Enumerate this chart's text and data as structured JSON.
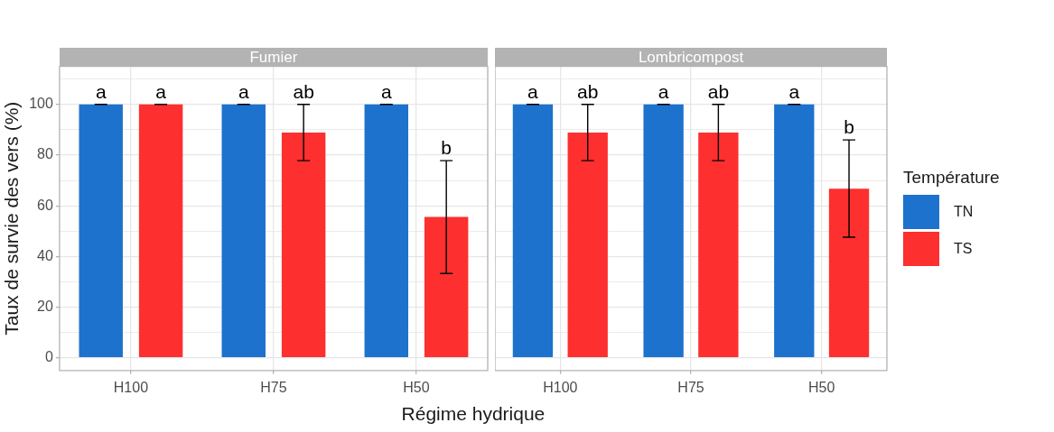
{
  "chart_data": [
    {
      "type": "bar",
      "title": "Fumier",
      "xlabel": "Régime hydrique",
      "ylabel": "Taux de survie des vers (%)",
      "categories": [
        "H100",
        "H75",
        "H50"
      ],
      "series": [
        {
          "color": "#1c72cc",
          "values": [
            100,
            100,
            100
          ],
          "errors": [
            0,
            0,
            0
          ],
          "value_labels": [
            "a",
            "a",
            "a"
          ]
        },
        {
          "color": "#fe2f2f",
          "values": [
            100,
            88.9,
            55.6
          ],
          "errors": [
            0,
            [
              77.8,
              100
            ],
            [
              33.3,
              77.8
            ]
          ],
          "value_labels": [
            "a",
            "ab",
            "b"
          ]
        }
      ],
      "ylim": [
        -5,
        115
      ],
      "yticks": [
        0,
        {
          "value": 10,
          "label": null
        },
        20,
        {
          "value": 30,
          "label": null
        },
        40,
        {
          "value": 50,
          "label": null
        },
        60,
        {
          "value": 70,
          "label": null
        },
        80,
        {
          "value": 90,
          "label": null
        },
        100,
        {
          "value": 110,
          "label": null
        }
      ],
      "grid": true,
      "legend": false
    },
    {
      "type": "bar",
      "title": "Lombricompost",
      "legend_title": "Température",
      "categories": [
        "H100",
        "H75",
        "H50"
      ],
      "series": [
        {
          "name": "TN",
          "color": "#1c72cc",
          "values": [
            100,
            100,
            100
          ],
          "errors": [
            0,
            0,
            0
          ],
          "value_labels": [
            "a",
            "a",
            "a"
          ]
        },
        {
          "name": "TS",
          "color": "#fe2f2f",
          "values": [
            88.9,
            88.9,
            66.7
          ],
          "errors": [
            [
              77.8,
              100
            ],
            [
              77.8,
              100
            ],
            [
              47.6,
              86
            ]
          ],
          "value_labels": [
            "ab",
            "ab",
            "b"
          ]
        }
      ],
      "ylim": [
        -5,
        115
      ],
      "yticks": [
        0,
        {
          "value": 10,
          "label": null
        },
        20,
        {
          "value": 30,
          "label": null
        },
        40,
        {
          "value": 50,
          "label": null
        },
        60,
        {
          "value": 70,
          "label": null
        },
        80,
        {
          "value": 90,
          "label": null
        },
        100,
        {
          "value": 110,
          "label": null
        }
      ],
      "grid": true,
      "legend": "right",
      "tick_labels": "x"
    }
  ]
}
